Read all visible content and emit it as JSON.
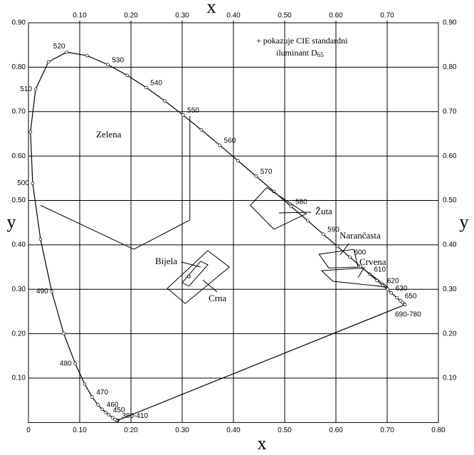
{
  "chart_data": {
    "type": "chromaticity",
    "x_label": "x",
    "y_label": "y",
    "xlim": [
      0,
      0.8
    ],
    "ylim": [
      0,
      0.9
    ],
    "grid": true,
    "xticks": [
      0,
      {
        "value": 0.1,
        "label": "0.10"
      },
      {
        "value": 0.2,
        "label": "0.20"
      },
      {
        "value": 0.3,
        "label": "0.30"
      },
      {
        "value": 0.4,
        "label": "0.40"
      },
      {
        "value": 0.5,
        "label": "0.50"
      },
      {
        "value": 0.6,
        "label": "0.60"
      },
      {
        "value": 0.7,
        "label": "0.70"
      },
      {
        "value": 0.8,
        "label": "0.80"
      }
    ],
    "xticks_top": [
      {
        "value": 0.1,
        "label": "0.10"
      },
      {
        "value": 0.2,
        "label": "0.20"
      },
      {
        "value": 0.3,
        "label": "0.30"
      },
      {
        "value": 0.4,
        "label": "0.40"
      },
      {
        "value": 0.5,
        "label": "0.50"
      },
      {
        "value": 0.6,
        "label": "0.60"
      },
      {
        "value": 0.7,
        "label": "0.70"
      }
    ],
    "yticks": [
      {
        "value": 0.1,
        "label": "0.10"
      },
      {
        "value": 0.2,
        "label": "0.20"
      },
      {
        "value": 0.3,
        "label": "0.30"
      },
      {
        "value": 0.4,
        "label": "0.40"
      },
      {
        "value": 0.5,
        "label": "0.50"
      },
      {
        "value": 0.6,
        "label": "0.60"
      },
      {
        "value": 0.7,
        "label": "0.70"
      },
      {
        "value": 0.8,
        "label": "0.80"
      },
      {
        "value": 0.9,
        "label": "0.90"
      }
    ],
    "locus": {
      "x": [
        0.1741,
        0.1733,
        0.1726,
        0.1714,
        0.1689,
        0.1644,
        0.1566,
        0.151,
        0.144,
        0.1355,
        0.1241,
        0.1096,
        0.0913,
        0.0687,
        0.0454,
        0.0235,
        0.0082,
        0.0039,
        0.0139,
        0.0389,
        0.0743,
        0.1142,
        0.1547,
        0.1929,
        0.2296,
        0.2658,
        0.3016,
        0.3373,
        0.3731,
        0.4087,
        0.4441,
        0.4788,
        0.5125,
        0.5448,
        0.5752,
        0.6029,
        0.627,
        0.6482,
        0.6658,
        0.6801,
        0.6915,
        0.7006,
        0.7079,
        0.719,
        0.726,
        0.73,
        0.7334,
        0.7347
      ],
      "y": [
        0.005,
        0.0048,
        0.0048,
        0.0051,
        0.0069,
        0.0109,
        0.0177,
        0.0227,
        0.0297,
        0.0399,
        0.0578,
        0.0868,
        0.1327,
        0.2007,
        0.295,
        0.4127,
        0.5384,
        0.6548,
        0.7502,
        0.812,
        0.8338,
        0.8262,
        0.8059,
        0.7816,
        0.7543,
        0.7243,
        0.6923,
        0.6589,
        0.6245,
        0.5896,
        0.5547,
        0.5202,
        0.4866,
        0.4544,
        0.4242,
        0.3965,
        0.3725,
        0.3514,
        0.334,
        0.3197,
        0.3083,
        0.2993,
        0.292,
        0.2809,
        0.274,
        0.27,
        0.2666,
        0.2653
      ],
      "point_labels": [
        "380-410",
        null,
        null,
        null,
        null,
        null,
        "450",
        null,
        "460",
        null,
        "470",
        null,
        "480",
        null,
        "490",
        null,
        "500",
        null,
        "510",
        null,
        "520",
        null,
        "530",
        null,
        "540",
        null,
        "550",
        null,
        "560",
        null,
        "570",
        null,
        "580",
        null,
        "590",
        null,
        "600",
        null,
        "610",
        null,
        "620",
        null,
        "630",
        null,
        "650",
        null,
        null,
        "690-780"
      ]
    },
    "regions": [
      {
        "label": "Zelena",
        "x": [
          0.0236,
          0.2056,
          0.315,
          0.315
        ],
        "y": [
          0.489,
          0.39,
          0.456,
          0.69
        ]
      },
      {
        "label": "Žuta",
        "x": [
          0.433,
          0.465,
          0.542,
          0.479
        ],
        "y": [
          0.489,
          0.529,
          0.47,
          0.435
        ]
      },
      {
        "label": "Narančasta",
        "x": [
          0.567,
          0.635,
          0.643,
          0.586
        ],
        "y": [
          0.379,
          0.39,
          0.35,
          0.348
        ]
      },
      {
        "label": "Crvena",
        "x": [
          0.572,
          0.651,
          0.701,
          0.594
        ],
        "y": [
          0.342,
          0.348,
          0.305,
          0.318
        ]
      },
      {
        "label": "Bijela",
        "x": [
          0.271,
          0.35,
          0.392,
          0.306
        ],
        "y": [
          0.302,
          0.387,
          0.35,
          0.268
        ]
      },
      {
        "label": "Crna",
        "x": [
          0.3,
          0.336,
          0.35,
          0.313
        ],
        "y": [
          0.315,
          0.363,
          0.355,
          0.307
        ]
      }
    ],
    "illuminant_d65": {
      "x": 0.3127,
      "y": 0.329
    },
    "note": {
      "line1": "+ pokazuje CIE standardni",
      "line2": "iluminant D",
      "subscript": "65"
    }
  }
}
